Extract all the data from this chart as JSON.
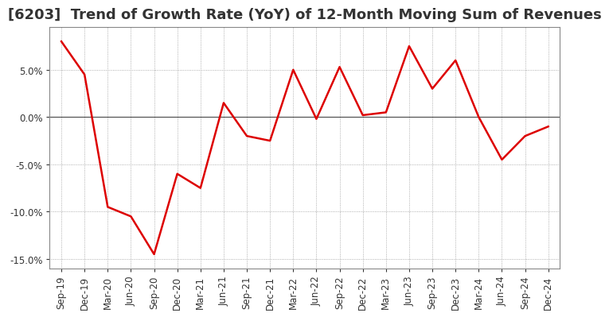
{
  "title": "[6203]  Trend of Growth Rate (YoY) of 12-Month Moving Sum of Revenues",
  "labels": [
    "Sep-19",
    "Dec-19",
    "Mar-20",
    "Jun-20",
    "Sep-20",
    "Dec-20",
    "Mar-21",
    "Jun-21",
    "Sep-21",
    "Dec-21",
    "Mar-22",
    "Jun-22",
    "Sep-22",
    "Dec-22",
    "Mar-23",
    "Jun-23",
    "Sep-23",
    "Dec-23",
    "Mar-24",
    "Jun-24",
    "Sep-24",
    "Dec-24"
  ],
  "values": [
    0.08,
    0.045,
    -0.095,
    -0.105,
    -0.145,
    -0.06,
    -0.075,
    0.015,
    -0.02,
    -0.025,
    0.05,
    -0.002,
    0.053,
    0.002,
    0.005,
    0.075,
    0.03,
    0.06,
    0.0,
    -0.045,
    -0.02,
    -0.01
  ],
  "line_color": "#DD0000",
  "background_color": "#ffffff",
  "plot_bg_color": "#ffffff",
  "grid_color": "#999999",
  "zero_line_color": "#555555",
  "spine_color": "#888888",
  "ylim": [
    -0.16,
    0.095
  ],
  "yticks": [
    -0.15,
    -0.1,
    -0.05,
    0.0,
    0.05
  ],
  "title_fontsize": 13,
  "tick_fontsize": 8.5,
  "title_color": "#333333"
}
